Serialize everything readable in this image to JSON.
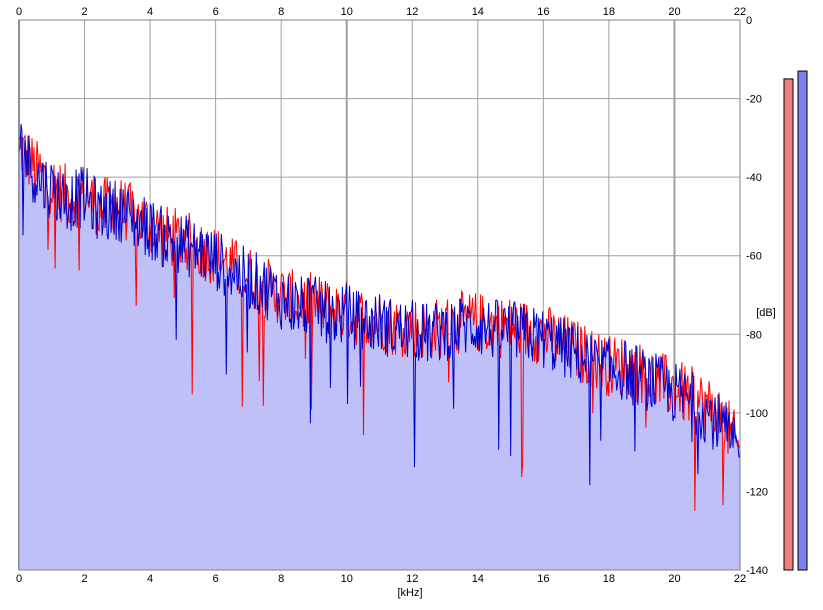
{
  "chart_data": {
    "type": "area",
    "title": "",
    "xlabel": "[kHz]",
    "ylabel": "[dB]",
    "xlim": [
      0,
      22
    ],
    "ylim": [
      -140,
      0
    ],
    "x_ticks": [
      "0",
      "2",
      "4",
      "6",
      "8",
      "10",
      "12",
      "14",
      "16",
      "18",
      "20",
      "22"
    ],
    "y_ticks": [
      "0",
      "-20",
      "-40",
      "-60",
      "-80",
      "-100",
      "-120",
      "-140"
    ],
    "grid": true,
    "series": [
      {
        "color": "#ff0000",
        "x": [
          0,
          0.5,
          1,
          1.5,
          2,
          2.5,
          3,
          3.5,
          4,
          4.5,
          5,
          5.5,
          6,
          6.5,
          7,
          7.5,
          8,
          8.5,
          9,
          9.5,
          10,
          10.5,
          11,
          11.5,
          12,
          12.5,
          13,
          13.5,
          14,
          14.5,
          15,
          15.5,
          16,
          16.5,
          17,
          17.5,
          18,
          18.5,
          19,
          19.5,
          20,
          20.5,
          21,
          21.5,
          22
        ],
        "y": [
          -32,
          -38,
          -42,
          -45,
          -44,
          -48,
          -47,
          -50,
          -52,
          -55,
          -56,
          -58,
          -60,
          -63,
          -65,
          -68,
          -70,
          -72,
          -72,
          -74,
          -74,
          -76,
          -76,
          -78,
          -78,
          -79,
          -78,
          -77,
          -77,
          -78,
          -78,
          -79,
          -80,
          -82,
          -84,
          -86,
          -88,
          -88,
          -90,
          -92,
          -94,
          -96,
          -98,
          -102,
          -110
        ]
      },
      {
        "color": "#0000cc",
        "x": [
          0,
          0.5,
          1,
          1.5,
          2,
          2.5,
          3,
          3.5,
          4,
          4.5,
          5,
          5.5,
          6,
          6.5,
          7,
          7.5,
          8,
          8.5,
          9,
          9.5,
          10,
          10.5,
          11,
          11.5,
          12,
          12.5,
          13,
          13.5,
          14,
          14.5,
          15,
          15.5,
          16,
          16.5,
          17,
          17.5,
          18,
          18.5,
          19,
          19.5,
          20,
          20.5,
          21,
          21.5,
          22
        ],
        "y": [
          -30,
          -40,
          -43,
          -46,
          -45,
          -49,
          -48,
          -51,
          -53,
          -56,
          -57,
          -59,
          -61,
          -64,
          -66,
          -68,
          -71,
          -73,
          -73,
          -75,
          -75,
          -77,
          -77,
          -79,
          -79,
          -80,
          -79,
          -78,
          -78,
          -79,
          -79,
          -80,
          -81,
          -83,
          -85,
          -87,
          -89,
          -89,
          -91,
          -93,
          -95,
          -97,
          -100,
          -104,
          -112
        ]
      }
    ],
    "level_meters": [
      {
        "color": "#f08080",
        "value_db": -15
      },
      {
        "color": "#8080f0",
        "value_db": -13
      }
    ],
    "fill_color": "#c0c0f8"
  }
}
